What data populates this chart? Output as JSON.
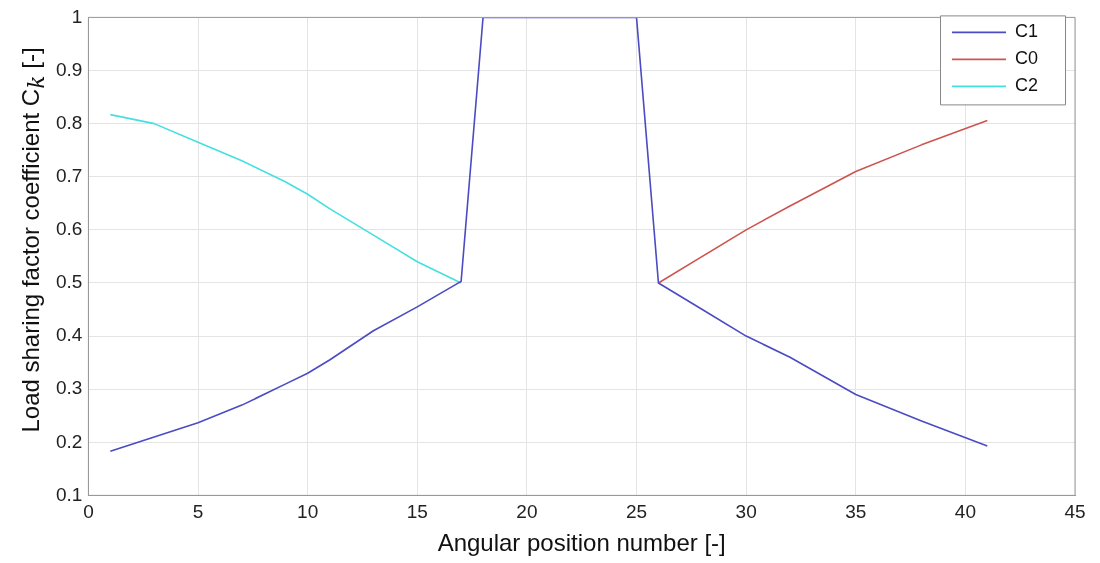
{
  "chart_data": {
    "type": "line",
    "xlabel": "Angular position number [-]",
    "ylabel": "Load sharing factor coefficient C$_{k}$ [-]",
    "xlim": [
      0,
      45
    ],
    "xticks": [
      0,
      5,
      10,
      15,
      20,
      25,
      30,
      35,
      40,
      45
    ],
    "ylim": [
      0.1,
      1
    ],
    "yticks": [
      0.1,
      0.2,
      0.3,
      0.4,
      0.5,
      0.6,
      0.7,
      0.8,
      0.9,
      1
    ],
    "grid": true,
    "legend": "top right",
    "marker": "none",
    "series": [
      {
        "name": "C1",
        "color": "#4b4bc4",
        "x": [
          1,
          3,
          5,
          7,
          9,
          10,
          11,
          13,
          15,
          17,
          18,
          25,
          26,
          28,
          30,
          32,
          35,
          38,
          41
        ],
        "values": [
          0.183,
          0.21,
          0.237,
          0.27,
          0.31,
          0.33,
          0.355,
          0.41,
          0.455,
          0.503,
          1,
          1,
          0.5,
          0.45,
          0.4,
          0.36,
          0.29,
          0.24,
          0.193
        ]
      },
      {
        "name": "C0",
        "color": "#cc5550",
        "x": [
          26,
          28,
          30,
          32,
          35,
          38,
          41
        ],
        "values": [
          0.5,
          0.55,
          0.6,
          0.645,
          0.71,
          0.76,
          0.806
        ]
      },
      {
        "name": "C2",
        "color": "#44e0e0",
        "x": [
          1,
          3,
          5,
          7,
          9,
          10,
          11,
          13,
          15,
          17
        ],
        "values": [
          0.817,
          0.8,
          0.765,
          0.73,
          0.69,
          0.667,
          0.64,
          0.59,
          0.54,
          0.5
        ]
      }
    ]
  }
}
